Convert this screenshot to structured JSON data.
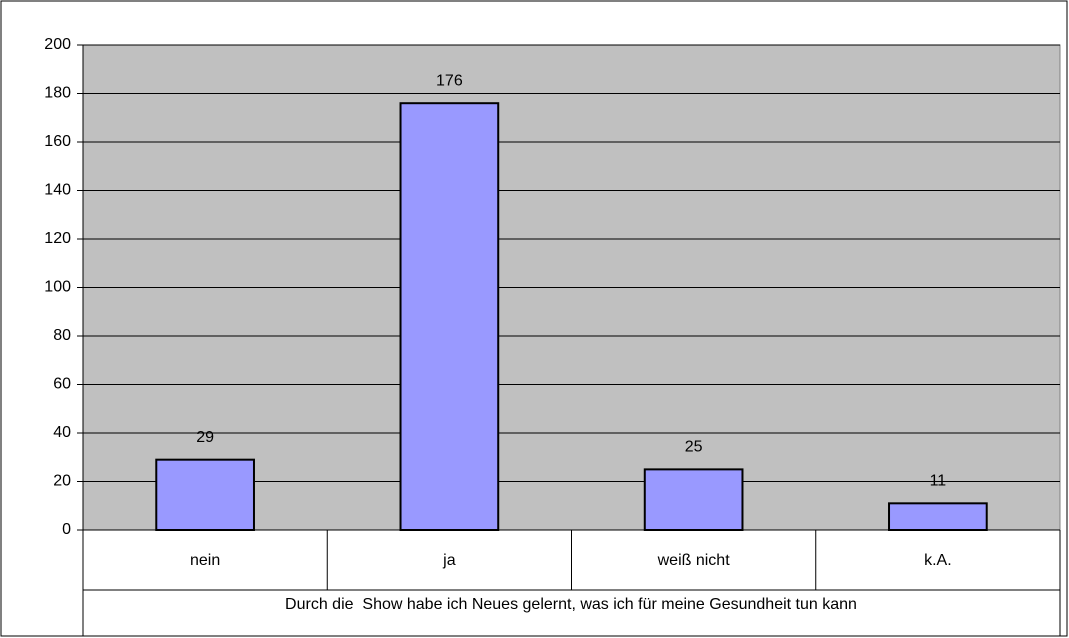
{
  "chart_data": {
    "type": "bar",
    "x_label": "Durch die  Show habe ich Neues gelernt, was ich für meine Gesundheit tun kann",
    "categories": [
      "nein",
      "ja",
      "weiß nicht",
      "k.A."
    ],
    "values": [
      29,
      176,
      25,
      11
    ],
    "color": "#9999ff",
    "ylim": [
      0,
      200
    ],
    "yticks": [
      0,
      20,
      40,
      60,
      80,
      100,
      120,
      140,
      160,
      180,
      200
    ],
    "grid": true
  }
}
